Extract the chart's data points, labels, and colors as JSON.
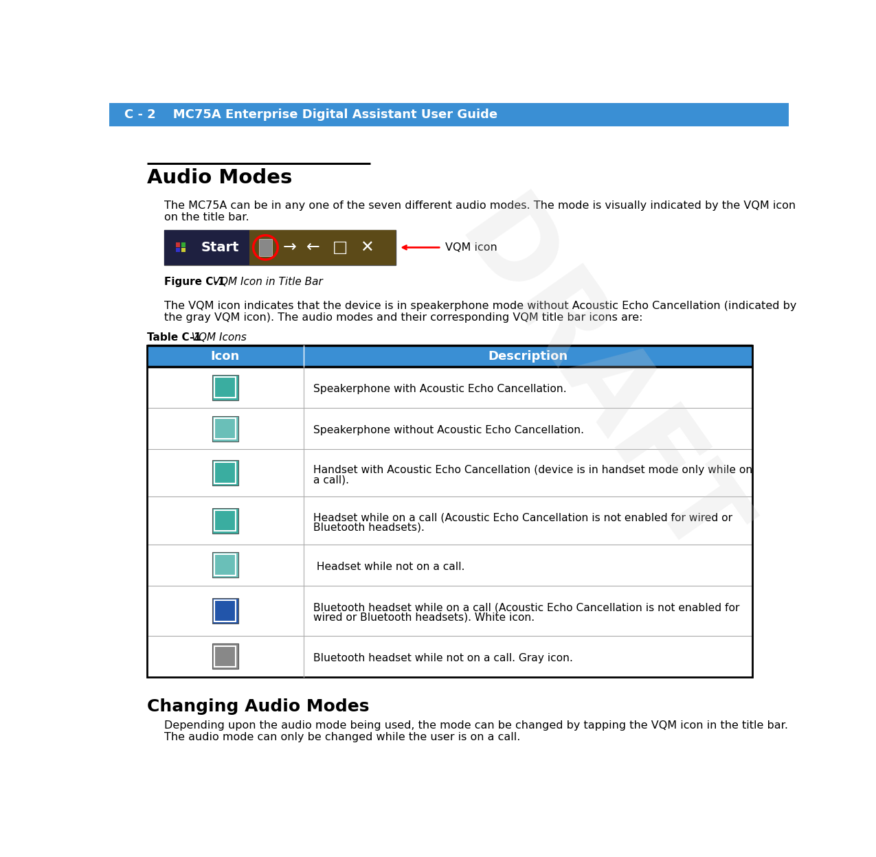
{
  "header_bg_color": "#3A8FD4",
  "header_text_color": "#FFFFFF",
  "header_text": "C - 2    MC75A Enterprise Digital Assistant User Guide",
  "page_bg_color": "#FFFFFF",
  "section_title": "Audio Modes",
  "body_text_1a": "The MC75A can be in any one of the seven different audio modes. The mode is visually indicated by the VQM icon",
  "body_text_1b": "on the title bar.",
  "figure_label_bold": "Figure C-1",
  "figure_caption_italic": "   VQM Icon in Title Bar",
  "body_text_2a": "The VQM icon indicates that the device is in speakerphone mode without Acoustic Echo Cancellation (indicated by",
  "body_text_2b": "the gray VQM icon). The audio modes and their corresponding VQM title bar icons are:",
  "table_label_bold": "Table C-1",
  "table_caption_italic": "   VQM Icons",
  "table_header_bg": "#3A8FD4",
  "table_col1_header": "Icon",
  "table_col2_header": "Description",
  "table_rows": [
    "Speakerphone with Acoustic Echo Cancellation.",
    "Speakerphone without Acoustic Echo Cancellation.",
    "Handset with Acoustic Echo Cancellation (device is in handset mode only while on\na call).",
    "Headset while on a call (Acoustic Echo Cancellation is not enabled for wired or\nBluetooth headsets).",
    " Headset while not on a call.",
    "Bluetooth headset while on a call (Acoustic Echo Cancellation is not enabled for\nwired or Bluetooth headsets). White icon.",
    "Bluetooth headset while not on a call. Gray icon."
  ],
  "section2_title": "Changing Audio Modes",
  "body_text_3a": "Depending upon the audio mode being used, the mode can be changed by tapping the VQM icon in the title bar.",
  "body_text_3b": "The audio mode can only be changed while the user is on a call.",
  "draft_text": "DRAFT",
  "vqm_label": "VQM icon",
  "icon_teal1": "#3AADA0",
  "icon_teal2": "#6ABFB8",
  "icon_green": "#5AAD8F",
  "icon_blue": "#2255AA",
  "icon_gray": "#888888"
}
